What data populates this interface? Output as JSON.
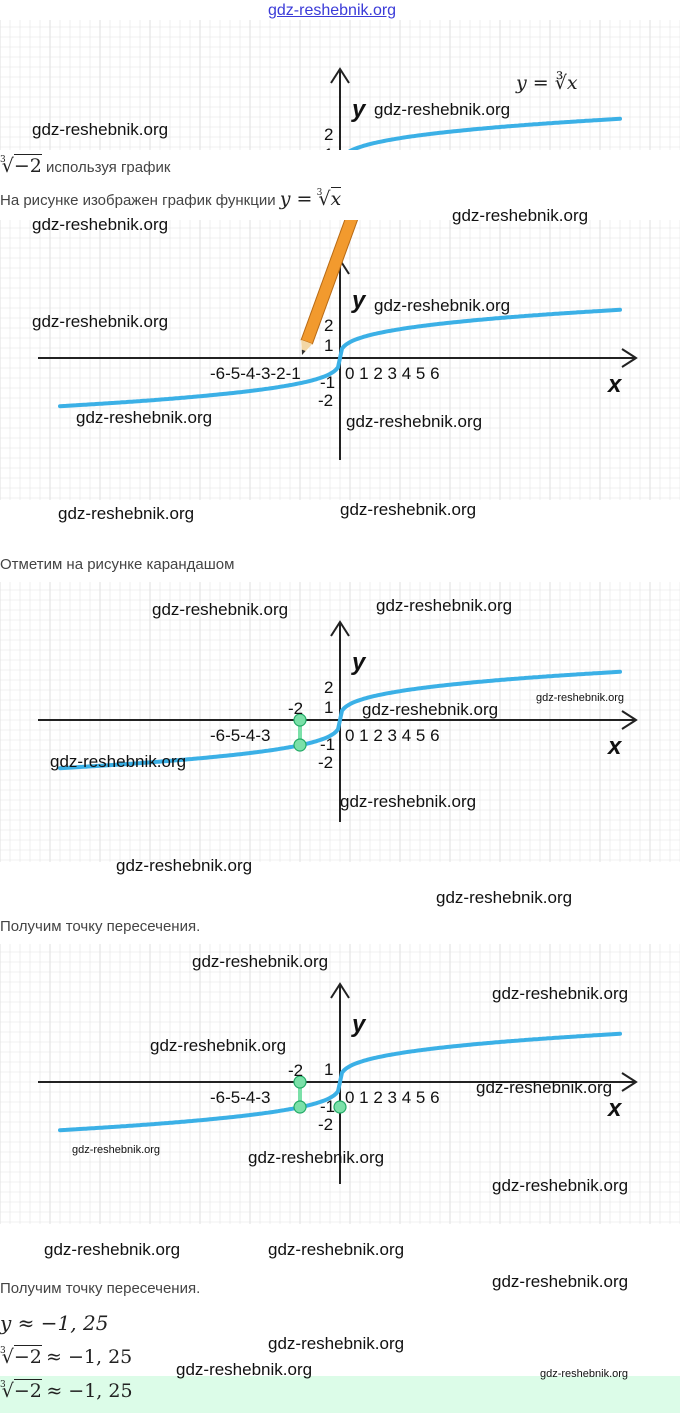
{
  "site_link": "gdz-reshebnik.org",
  "watermark_text": "gdz-reshebnik.org",
  "header_formula": "y = ∛x",
  "intro_task": {
    "radicand": "−2",
    "index": "3",
    "text": "используя график"
  },
  "intro_text": {
    "text": "На рисунке изображен график функции",
    "formula_lhs": "y =",
    "radicand": "x"
  },
  "step_pencil": "Отметим на рисунке карандашом",
  "step_intersection_1": "Получим точку пересечения.",
  "step_intersection_2": "Получим точку пересечения.",
  "result_y": "y ≈ −1, 25",
  "result_root": {
    "radicand": "−2",
    "value": "≈ −1, 25"
  },
  "answer": {
    "radicand": "−2",
    "value": "≈ −1, 25"
  },
  "graph": {
    "x_label": "x",
    "y_label": "y",
    "x_ticks_neg": "-6-5-4-3-2-1",
    "x_ticks_neg_short": "-6-5-4-3",
    "x_ticks_pos": "0 1 2 3 4 5 6",
    "y_ticks": [
      "2",
      "1",
      "-1",
      "-2"
    ],
    "point_label": "-2",
    "curve_color": "#3bb0e6",
    "point_color": "#7be0a8",
    "grid_color": "#e4e4e4",
    "pencil_color": "#f29a2e",
    "marked_x": -2,
    "found_y": -1.25
  }
}
